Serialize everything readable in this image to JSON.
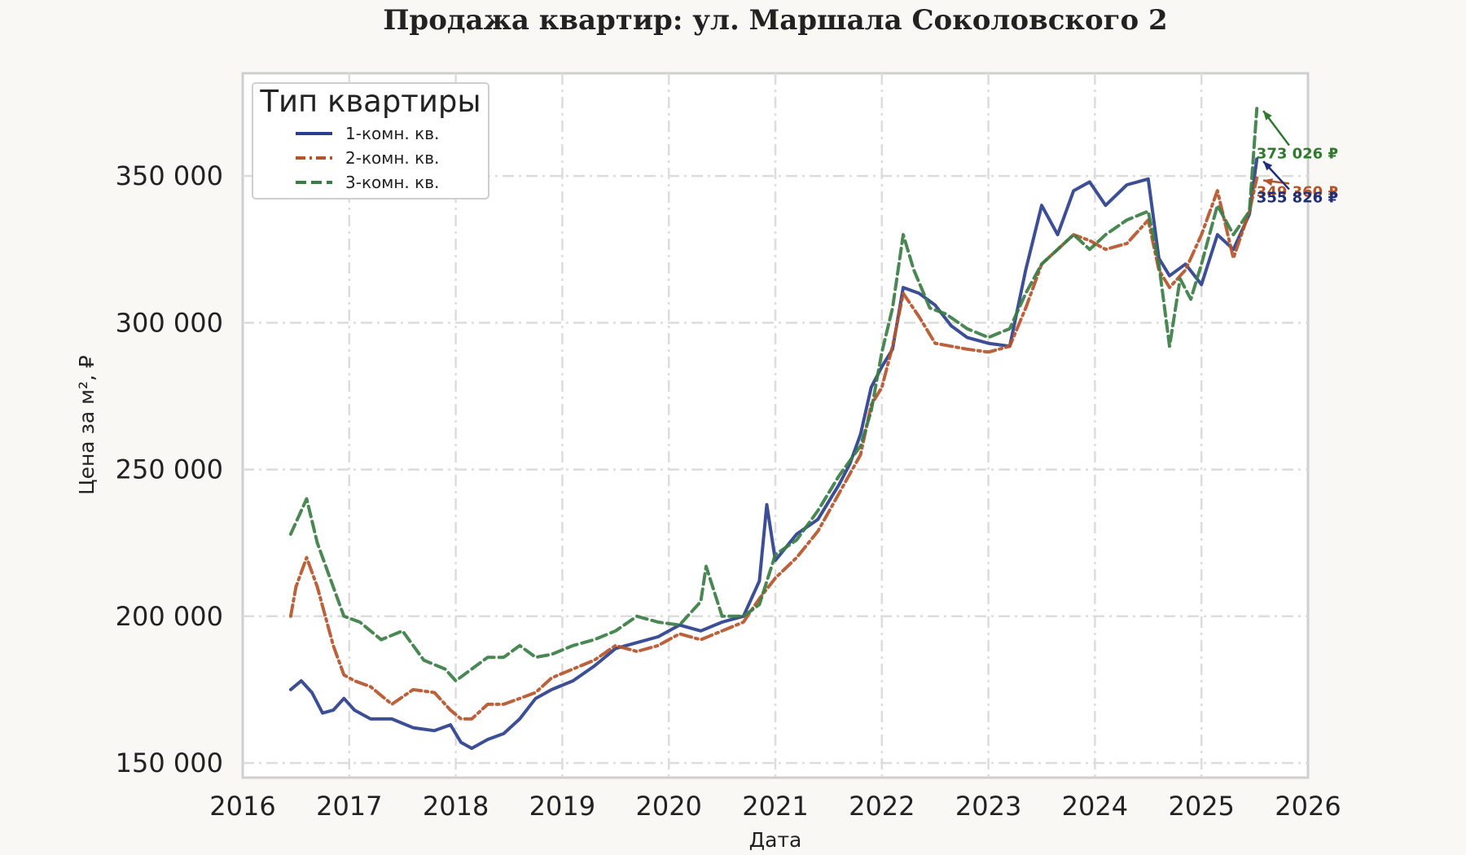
{
  "chart_data": {
    "type": "line",
    "title": "Продажа квартир: ул. Маршала Соколовского 2",
    "xlabel": "Дата",
    "ylabel": "Цена за м², ₽",
    "xlim": [
      2016,
      2026
    ],
    "ylim": [
      145000,
      385000
    ],
    "xticks": [
      2016,
      2017,
      2018,
      2019,
      2020,
      2021,
      2022,
      2023,
      2024,
      2025,
      2026
    ],
    "xtick_labels": [
      "2016",
      "2017",
      "2018",
      "2019",
      "2020",
      "2021",
      "2022",
      "2023",
      "2024",
      "2025",
      "2026"
    ],
    "yticks": [
      150000,
      200000,
      250000,
      300000,
      350000
    ],
    "ytick_labels": [
      "150 000",
      "200 000",
      "250 000",
      "300 000",
      "350 000"
    ],
    "grid": true,
    "legend": {
      "title": "Тип квартиры",
      "placement": "top-left"
    },
    "series": [
      {
        "name": "1-комн. кв.",
        "color": "#2b3f8c",
        "style": "solid",
        "x": [
          2016.45,
          2016.55,
          2016.65,
          2016.75,
          2016.85,
          2016.95,
          2017.05,
          2017.2,
          2017.4,
          2017.6,
          2017.8,
          2017.95,
          2018.05,
          2018.15,
          2018.3,
          2018.45,
          2018.6,
          2018.75,
          2018.9,
          2019.1,
          2019.3,
          2019.5,
          2019.7,
          2019.9,
          2020.1,
          2020.3,
          2020.5,
          2020.7,
          2020.85,
          2020.92,
          2021.0,
          2021.2,
          2021.4,
          2021.6,
          2021.7,
          2021.8,
          2021.9,
          2022.0,
          2022.1,
          2022.2,
          2022.35,
          2022.5,
          2022.65,
          2022.8,
          2023.0,
          2023.2,
          2023.35,
          2023.5,
          2023.65,
          2023.8,
          2023.95,
          2024.1,
          2024.3,
          2024.5,
          2024.6,
          2024.7,
          2024.85,
          2025.0,
          2025.15,
          2025.3,
          2025.45,
          2025.52
        ],
        "values": [
          175000,
          178000,
          174000,
          167000,
          168000,
          172000,
          168000,
          165000,
          165000,
          162000,
          161000,
          163000,
          157000,
          155000,
          158000,
          160000,
          165000,
          172000,
          175000,
          178000,
          183000,
          189000,
          191000,
          193000,
          197000,
          195000,
          198000,
          200000,
          212000,
          238000,
          219000,
          228000,
          233000,
          245000,
          252000,
          262000,
          278000,
          285000,
          291000,
          312000,
          310000,
          306000,
          299000,
          295000,
          293000,
          292000,
          318000,
          340000,
          330000,
          345000,
          348000,
          340000,
          347000,
          349000,
          322000,
          316000,
          320000,
          313000,
          330000,
          325000,
          337000,
          355826
        ]
      },
      {
        "name": "2-комн. кв.",
        "color": "#b5542a",
        "style": "dashdot",
        "x": [
          2016.45,
          2016.5,
          2016.6,
          2016.7,
          2016.85,
          2016.95,
          2017.05,
          2017.2,
          2017.4,
          2017.6,
          2017.8,
          2017.95,
          2018.05,
          2018.15,
          2018.3,
          2018.45,
          2018.6,
          2018.75,
          2018.9,
          2019.1,
          2019.3,
          2019.5,
          2019.7,
          2019.9,
          2020.1,
          2020.3,
          2020.5,
          2020.7,
          2020.85,
          2021.0,
          2021.2,
          2021.4,
          2021.6,
          2021.8,
          2021.9,
          2022.0,
          2022.1,
          2022.2,
          2022.35,
          2022.5,
          2022.65,
          2022.8,
          2023.0,
          2023.2,
          2023.35,
          2023.5,
          2023.65,
          2023.8,
          2023.95,
          2024.1,
          2024.3,
          2024.5,
          2024.6,
          2024.7,
          2024.85,
          2025.0,
          2025.15,
          2025.3,
          2025.45,
          2025.52
        ],
        "values": [
          200000,
          210000,
          220000,
          210000,
          190000,
          180000,
          178000,
          176000,
          170000,
          175000,
          174000,
          168000,
          165000,
          165000,
          170000,
          170000,
          172000,
          174000,
          179000,
          182000,
          185000,
          190000,
          188000,
          190000,
          194000,
          192000,
          195000,
          198000,
          206000,
          213000,
          220000,
          229000,
          242000,
          255000,
          272000,
          278000,
          292000,
          310000,
          302000,
          293000,
          292000,
          291000,
          290000,
          292000,
          305000,
          320000,
          325000,
          330000,
          328000,
          325000,
          327000,
          335000,
          318000,
          312000,
          318000,
          330000,
          345000,
          322000,
          338000,
          349360
        ]
      },
      {
        "name": "3-комн. кв.",
        "color": "#3a7d44",
        "style": "dashed",
        "x": [
          2016.45,
          2016.6,
          2016.7,
          2016.8,
          2016.95,
          2017.1,
          2017.3,
          2017.5,
          2017.7,
          2017.9,
          2018.0,
          2018.15,
          2018.3,
          2018.45,
          2018.6,
          2018.75,
          2018.9,
          2019.1,
          2019.3,
          2019.5,
          2019.7,
          2019.9,
          2020.1,
          2020.3,
          2020.35,
          2020.5,
          2020.7,
          2020.85,
          2021.0,
          2021.2,
          2021.4,
          2021.6,
          2021.8,
          2021.9,
          2022.0,
          2022.1,
          2022.2,
          2022.3,
          2022.45,
          2022.6,
          2022.8,
          2023.0,
          2023.2,
          2023.35,
          2023.5,
          2023.65,
          2023.8,
          2023.95,
          2024.1,
          2024.3,
          2024.5,
          2024.6,
          2024.7,
          2024.8,
          2024.9,
          2025.0,
          2025.15,
          2025.3,
          2025.45,
          2025.52
        ],
        "values": [
          228000,
          240000,
          225000,
          215000,
          200000,
          198000,
          192000,
          195000,
          185000,
          182000,
          178000,
          182000,
          186000,
          186000,
          190000,
          186000,
          187000,
          190000,
          192000,
          195000,
          200000,
          198000,
          197000,
          205000,
          217000,
          200000,
          200000,
          204000,
          221000,
          226000,
          236000,
          248000,
          258000,
          270000,
          290000,
          305000,
          330000,
          318000,
          305000,
          303000,
          298000,
          295000,
          298000,
          310000,
          320000,
          325000,
          330000,
          325000,
          330000,
          335000,
          338000,
          320000,
          292000,
          315000,
          308000,
          320000,
          340000,
          330000,
          338000,
          373026
        ]
      }
    ],
    "annotations": [
      {
        "text": "373 026 ₽",
        "series": "3-комн. кв.",
        "x": 2025.55,
        "y": 373026,
        "label_x": 2025.9,
        "label_y": 356000,
        "color": "#2f7a2f"
      },
      {
        "text": "349 360 ₽",
        "series": "2-комн. кв.",
        "x": 2025.55,
        "y": 349360,
        "label_x": 2025.9,
        "label_y": 343000,
        "color": "#b5542a"
      },
      {
        "text": "355 826 ₽",
        "series": "1-комн. кв.",
        "x": 2025.55,
        "y": 355826,
        "label_x": 2025.9,
        "label_y": 341000,
        "color": "#1d2f7a"
      }
    ]
  }
}
